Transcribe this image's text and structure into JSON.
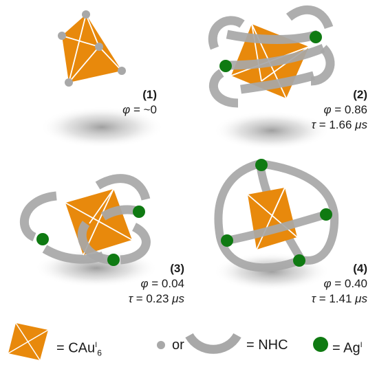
{
  "complexes": [
    {
      "id": "(1)",
      "phi_symbol": "φ",
      "phi_value": "~0",
      "tau_symbol": "",
      "tau_value": "",
      "tau_unit": ""
    },
    {
      "id": "(2)",
      "phi_symbol": "φ",
      "phi_value": "0.86",
      "tau_symbol": "τ",
      "tau_value": "1.66",
      "tau_unit": "μs"
    },
    {
      "id": "(3)",
      "phi_symbol": "φ",
      "phi_value": "0.04",
      "tau_symbol": "τ",
      "tau_value": "0.23",
      "tau_unit": "μs"
    },
    {
      "id": "(4)",
      "phi_symbol": "φ",
      "phi_value": "0.40",
      "tau_symbol": "τ",
      "tau_value": "1.41",
      "tau_unit": "μs"
    }
  ],
  "legend": {
    "core_label": "= CAu",
    "core_sup": "I",
    "core_sub": "6",
    "or_text": "or",
    "nhc_label": "= NHC",
    "ag_label": "= Ag",
    "ag_sup": "I"
  },
  "colors": {
    "gold_core": "#E8890C",
    "core_edge": "#ffffff",
    "ligand_gray": "#A8A8A8",
    "silver_green": "#0F7A12",
    "text": "#1a1a1a"
  }
}
